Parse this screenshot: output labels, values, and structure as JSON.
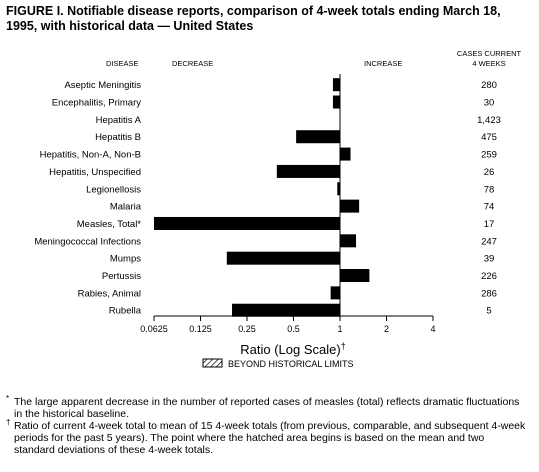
{
  "title": "FIGURE I. Notifiable disease reports, comparison of 4-week totals ending March 18, 1995, with historical data — United States",
  "chart_data": {
    "type": "bar",
    "orientation": "horizontal",
    "scale": "log",
    "baseline": 1,
    "column_headers": {
      "disease": "DISEASE",
      "decrease": "DECREASE",
      "increase": "INCREASE",
      "cases_line1": "CASES CURRENT",
      "cases_line2": "4 WEEKS"
    },
    "categories": [
      "Aseptic Meningitis",
      "Encephalitis, Primary",
      "Hepatitis A",
      "Hepatitis B",
      "Hepatitis, Non-A, Non-B",
      "Hepatitis, Unspecified",
      "Legionellosis",
      "Malaria",
      "Measles, Total*",
      "Meningococcal Infections",
      "Mumps",
      "Pertussis",
      "Rabies, Animal",
      "Rubella"
    ],
    "values": [
      0.9,
      0.9,
      1.0,
      0.52,
      1.17,
      0.39,
      0.96,
      1.33,
      0.0625,
      1.27,
      0.185,
      1.55,
      0.87,
      0.2
    ],
    "cases_current": [
      "280",
      "30",
      "1,423",
      "475",
      "259",
      "26",
      "78",
      "74",
      "17",
      "247",
      "39",
      "226",
      "286",
      "5"
    ],
    "xticks": [
      "0.0625",
      "0.125",
      "0.25",
      "0.5",
      "1",
      "2",
      "4"
    ],
    "xtick_values": [
      0.0625,
      0.125,
      0.25,
      0.5,
      1,
      2,
      4
    ],
    "xlim": [
      0.0625,
      4
    ],
    "xlabel": "Ratio (Log Scale)",
    "xlabel_mark": "†",
    "legend": "BEYOND HISTORICAL LIMITS",
    "bar_color": "#000000"
  },
  "footnotes": [
    {
      "mark": "*",
      "text": "The large apparent decrease in the number of reported cases of measles (total) reflects dramatic fluctuations in the historical baseline."
    },
    {
      "mark": "†",
      "text": "Ratio of current 4-week total to mean of 15 4-week totals (from previous, comparable, and subsequent 4-week periods for the past 5 years). The point where the hatched area begins is based on the mean and two standard deviations of these 4-week totals."
    }
  ]
}
